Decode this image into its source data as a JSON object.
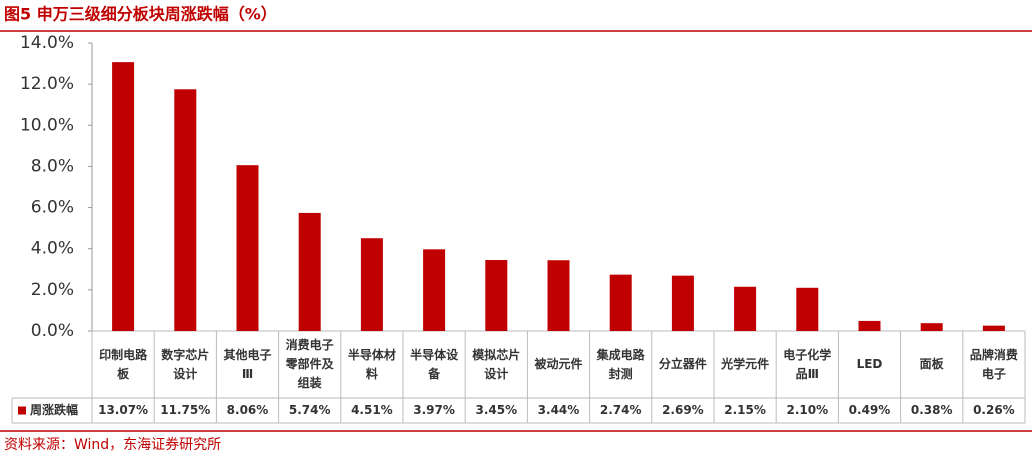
{
  "chart_data": {
    "type": "bar",
    "title": "图5 申万三级细分板块周涨跌幅（%）",
    "source": "资料来源：Wind，东海证券研究所",
    "categories": [
      "印制电路板",
      "数字芯片设计",
      "其他电子Ⅲ",
      "消费电子零部件及组装",
      "半导体材料",
      "半导体设备",
      "模拟芯片设计",
      "被动元件",
      "集成电路封测",
      "分立器件",
      "光学元件",
      "电子化学品Ⅲ",
      "LED",
      "面板",
      "品牌消费电子"
    ],
    "series": [
      {
        "name": "周涨跌幅",
        "color": "#c00000",
        "values": [
          13.07,
          11.75,
          8.06,
          5.74,
          4.51,
          3.97,
          3.45,
          3.44,
          2.74,
          2.69,
          2.15,
          2.1,
          0.49,
          0.38,
          0.26
        ],
        "value_labels": [
          "13.07%",
          "11.75%",
          "8.06%",
          "5.74%",
          "4.51%",
          "3.97%",
          "3.45%",
          "3.44%",
          "2.74%",
          "2.69%",
          "2.15%",
          "2.10%",
          "0.49%",
          "0.38%",
          "0.26%"
        ]
      }
    ],
    "ylim": [
      0,
      14
    ],
    "yticks": [
      {
        "value": 0,
        "label": "0.0%"
      },
      {
        "value": 2,
        "label": "2.0%"
      },
      {
        "value": 4,
        "label": "4.0%"
      },
      {
        "value": 6,
        "label": "6.0%"
      },
      {
        "value": 8,
        "label": "8.0%"
      },
      {
        "value": 10,
        "label": "10.0%"
      },
      {
        "value": 12,
        "label": "12.0%"
      },
      {
        "value": 14,
        "label": "14.0%"
      }
    ],
    "grid": false
  }
}
